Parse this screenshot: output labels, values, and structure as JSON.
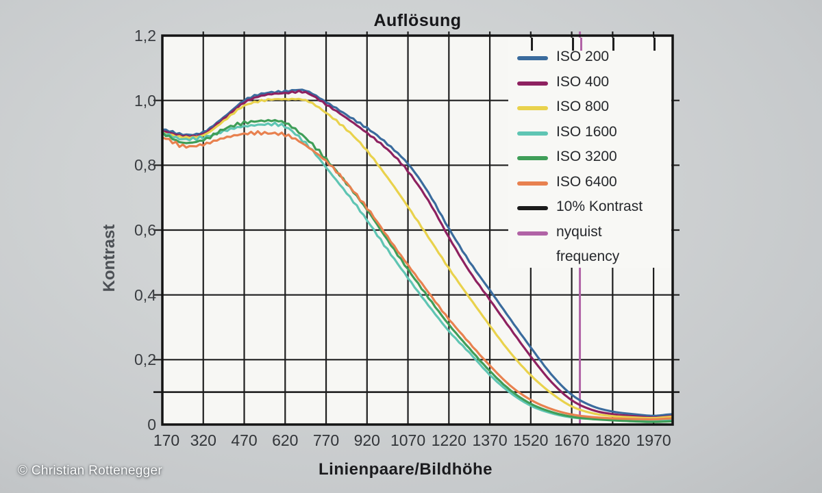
{
  "title": "Auflösung",
  "copyright": "© Christian Rottenegger",
  "axes": {
    "x_label": "Linienpaare/Bildhöhe",
    "y_label": "Kontrast"
  },
  "colors": {
    "background": "#cdd0d2",
    "plot_bg": "#f7f7f4",
    "grid": "#1f1f1f",
    "axis_border": "#141414",
    "kontrast_ref": "#161616",
    "nyquist": "#b163a6"
  },
  "legend": [
    {
      "label": "ISO 200",
      "color": "#3a6b9d"
    },
    {
      "label": "ISO 400",
      "color": "#8e2160"
    },
    {
      "label": "ISO 800",
      "color": "#e9d24c"
    },
    {
      "label": "ISO 1600",
      "color": "#5fc5b3"
    },
    {
      "label": "ISO 3200",
      "color": "#3f9e58"
    },
    {
      "label": "ISO 6400",
      "color": "#e8814f"
    },
    {
      "label": "10% Kontrast",
      "color": "#1b1b1b"
    },
    {
      "label": "nyquist",
      "label2": "frequency",
      "color": "#b163a6"
    }
  ],
  "chart_data": {
    "type": "line",
    "title": "Auflösung",
    "xlabel": "Linienpaare/Bildhöhe",
    "ylabel": "Kontrast",
    "xlim": [
      170,
      2040
    ],
    "ylim": [
      0,
      1.2
    ],
    "grid": true,
    "legend_position": "top-right-inside",
    "x_ticks": [
      170,
      320,
      470,
      620,
      770,
      920,
      1070,
      1220,
      1370,
      1520,
      1670,
      1820,
      1970
    ],
    "y_ticks": [
      {
        "v": 0,
        "label": "0"
      },
      {
        "v": 0.2,
        "label": "0,2"
      },
      {
        "v": 0.4,
        "label": "0,4"
      },
      {
        "v": 0.6,
        "label": "0,6"
      },
      {
        "v": 0.8,
        "label": "0,8"
      },
      {
        "v": 1.0,
        "label": "1,0"
      },
      {
        "v": 1.2,
        "label": "1,2"
      }
    ],
    "x": [
      170,
      245,
      320,
      395,
      470,
      545,
      620,
      695,
      770,
      845,
      920,
      995,
      1070,
      1145,
      1220,
      1295,
      1370,
      1445,
      1520,
      1595,
      1670,
      1745,
      1820,
      1895,
      1970,
      2040
    ],
    "series": [
      {
        "name": "ISO 200",
        "color": "#3a6b9d",
        "values": [
          0.91,
          0.895,
          0.902,
          0.948,
          1.0,
          1.022,
          1.028,
          1.03,
          0.995,
          0.955,
          0.915,
          0.865,
          0.805,
          0.715,
          0.605,
          0.503,
          0.415,
          0.325,
          0.238,
          0.155,
          0.092,
          0.057,
          0.04,
          0.032,
          0.027,
          0.032
        ]
      },
      {
        "name": "ISO 400",
        "color": "#8e2160",
        "values": [
          0.905,
          0.89,
          0.897,
          0.942,
          0.994,
          1.016,
          1.023,
          1.024,
          0.988,
          0.945,
          0.9,
          0.848,
          0.782,
          0.69,
          0.578,
          0.473,
          0.385,
          0.296,
          0.21,
          0.132,
          0.075,
          0.045,
          0.032,
          0.026,
          0.022,
          0.026
        ]
      },
      {
        "name": "ISO 800",
        "color": "#e9d24c",
        "values": [
          0.9,
          0.886,
          0.893,
          0.936,
          0.984,
          1.0,
          1.004,
          1.0,
          0.962,
          0.91,
          0.845,
          0.762,
          0.672,
          0.578,
          0.482,
          0.392,
          0.305,
          0.222,
          0.152,
          0.097,
          0.056,
          0.035,
          0.026,
          0.022,
          0.02,
          0.024
        ]
      },
      {
        "name": "ISO 1600",
        "color": "#5fc5b3",
        "values": [
          0.9,
          0.88,
          0.886,
          0.905,
          0.92,
          0.926,
          0.919,
          0.868,
          0.793,
          0.715,
          0.63,
          0.54,
          0.452,
          0.368,
          0.288,
          0.222,
          0.153,
          0.098,
          0.058,
          0.035,
          0.022,
          0.017,
          0.014,
          0.012,
          0.012,
          0.014
        ]
      },
      {
        "name": "ISO 3200",
        "color": "#3f9e58",
        "values": [
          0.897,
          0.87,
          0.877,
          0.912,
          0.93,
          0.938,
          0.93,
          0.885,
          0.818,
          0.745,
          0.662,
          0.57,
          0.478,
          0.392,
          0.308,
          0.235,
          0.165,
          0.106,
          0.064,
          0.039,
          0.024,
          0.017,
          0.013,
          0.01,
          0.008,
          0.01
        ]
      },
      {
        "name": "ISO 6400",
        "color": "#e8814f",
        "values": [
          0.885,
          0.86,
          0.863,
          0.885,
          0.896,
          0.9,
          0.893,
          0.862,
          0.812,
          0.746,
          0.668,
          0.58,
          0.492,
          0.408,
          0.325,
          0.252,
          0.182,
          0.12,
          0.076,
          0.048,
          0.031,
          0.023,
          0.019,
          0.017,
          0.016,
          0.019
        ]
      }
    ],
    "reference_lines": {
      "horizontal": {
        "label": "10% Kontrast",
        "y": 0.1,
        "color": "#161616"
      },
      "vertical": {
        "label": "nyquist frequency",
        "x": 1700,
        "color": "#b163a6"
      }
    }
  }
}
